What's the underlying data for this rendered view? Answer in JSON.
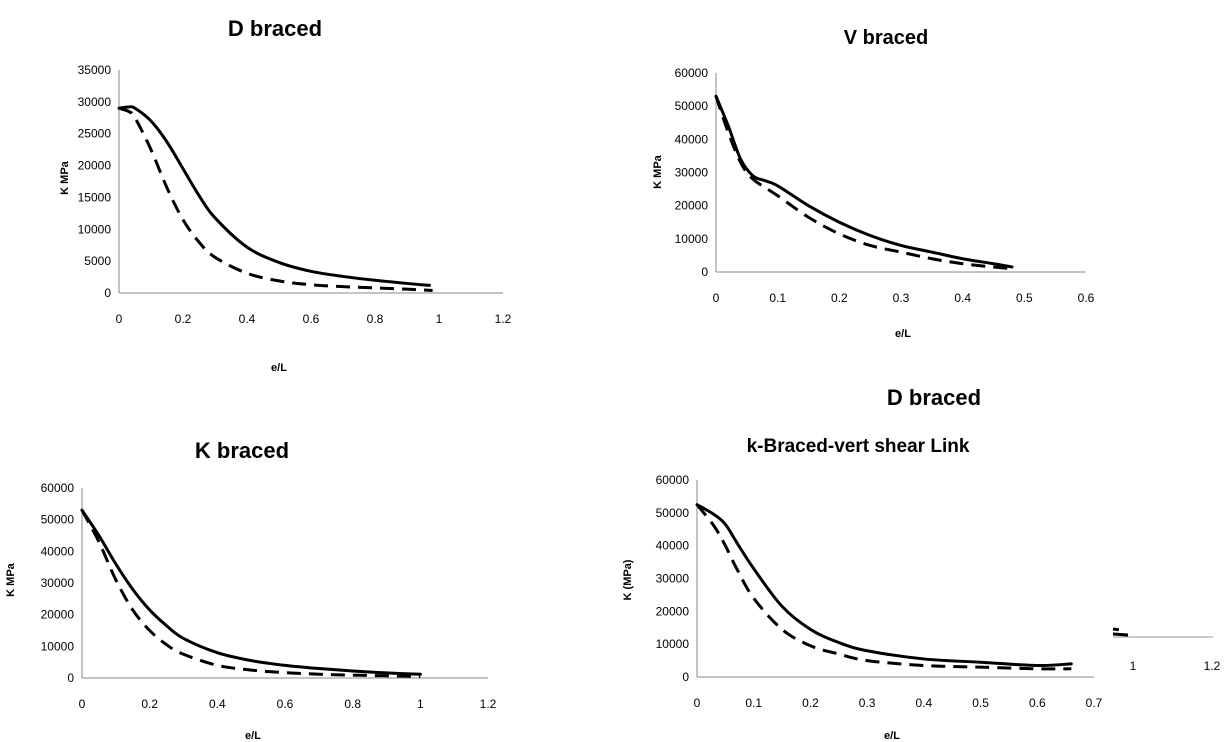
{
  "chart_data": [
    {
      "type": "line",
      "title": "D braced",
      "xlabel": "e/L",
      "ylabel": "K MPa",
      "xlim": [
        0,
        1.2
      ],
      "ylim": [
        0,
        35000
      ],
      "xticks": [
        "0",
        "0.2",
        "0.4",
        "0.6",
        "0.8",
        "1",
        "1.2"
      ],
      "yticks": [
        "0",
        "5000",
        "10000",
        "15000",
        "20000",
        "25000",
        "30000",
        "35000"
      ],
      "grid": false,
      "series": [
        {
          "style": "solid",
          "x": [
            0,
            0.03,
            0.05,
            0.1,
            0.15,
            0.2,
            0.25,
            0.3,
            0.4,
            0.5,
            0.6,
            0.7,
            0.8,
            0.9,
            0.97
          ],
          "y": [
            29000,
            29200,
            29000,
            27000,
            23700,
            19500,
            15300,
            11800,
            7200,
            4800,
            3400,
            2600,
            2000,
            1500,
            1200
          ]
        },
        {
          "style": "dashed",
          "x": [
            0,
            0.03,
            0.05,
            0.1,
            0.15,
            0.2,
            0.25,
            0.3,
            0.4,
            0.5,
            0.6,
            0.7,
            0.8,
            0.9,
            0.98
          ],
          "y": [
            29000,
            28500,
            27500,
            22500,
            16500,
            11500,
            8000,
            5600,
            3100,
            1900,
            1300,
            1000,
            800,
            600,
            400
          ]
        }
      ]
    },
    {
      "type": "line",
      "title": "V braced",
      "xlabel": "e/L",
      "ylabel": "K MPa",
      "xlim": [
        0,
        0.6
      ],
      "ylim": [
        0,
        60000
      ],
      "xticks": [
        "0",
        "0.1",
        "0.2",
        "0.3",
        "0.4",
        "0.5",
        "0.6"
      ],
      "yticks": [
        "0",
        "10000",
        "20000",
        "30000",
        "40000",
        "50000",
        "60000"
      ],
      "grid": false,
      "series": [
        {
          "style": "solid",
          "x": [
            0,
            0.02,
            0.04,
            0.06,
            0.08,
            0.1,
            0.15,
            0.2,
            0.25,
            0.3,
            0.35,
            0.4,
            0.45,
            0.48
          ],
          "y": [
            53000,
            44000,
            34000,
            29000,
            27500,
            26000,
            20000,
            15000,
            11000,
            8000,
            6000,
            4000,
            2500,
            1500
          ]
        },
        {
          "style": "dashed",
          "x": [
            0,
            0.02,
            0.04,
            0.06,
            0.1,
            0.15,
            0.2,
            0.25,
            0.3,
            0.35,
            0.4,
            0.45,
            0.48
          ],
          "y": [
            53000,
            42000,
            33000,
            28000,
            23000,
            16500,
            11500,
            8000,
            6000,
            4000,
            2500,
            1500,
            1000
          ]
        }
      ]
    },
    {
      "type": "line",
      "title": "K braced",
      "xlabel": "e/L",
      "ylabel": "K MPa",
      "xlim": [
        0,
        1.2
      ],
      "ylim": [
        0,
        60000
      ],
      "xticks": [
        "0",
        "0.2",
        "0.4",
        "0.6",
        "0.8",
        "1",
        "1.2"
      ],
      "yticks": [
        "0",
        "10000",
        "20000",
        "30000",
        "40000",
        "50000",
        "60000"
      ],
      "grid": false,
      "series": [
        {
          "style": "solid",
          "x": [
            0,
            0.05,
            0.1,
            0.15,
            0.2,
            0.25,
            0.3,
            0.4,
            0.5,
            0.6,
            0.7,
            0.8,
            0.9,
            1.0
          ],
          "y": [
            53000,
            45000,
            36000,
            28000,
            21500,
            16500,
            12500,
            8000,
            5500,
            4000,
            3000,
            2200,
            1600,
            1200
          ]
        },
        {
          "style": "dashed",
          "x": [
            0,
            0.05,
            0.1,
            0.15,
            0.2,
            0.25,
            0.3,
            0.4,
            0.5,
            0.6,
            0.7,
            0.8,
            0.9,
            1.0
          ],
          "y": [
            53000,
            43000,
            31000,
            21500,
            15000,
            10500,
            7500,
            4000,
            2500,
            1700,
            1200,
            900,
            700,
            500
          ]
        }
      ]
    },
    {
      "type": "line",
      "title": "k-Braced-vert shear Link",
      "heading": "D braced",
      "xlabel": "e/L",
      "ylabel": "K (MPa)",
      "xlim": [
        0,
        0.7
      ],
      "ylim": [
        0,
        60000
      ],
      "xticks": [
        "0",
        "0.1",
        "0.2",
        "0.3",
        "0.4",
        "0.5",
        "0.6",
        "0.7"
      ],
      "yticks": [
        "0",
        "10000",
        "20000",
        "30000",
        "40000",
        "50000",
        "60000"
      ],
      "grid": false,
      "series": [
        {
          "style": "solid",
          "x": [
            0,
            0.03,
            0.05,
            0.07,
            0.1,
            0.15,
            0.2,
            0.25,
            0.3,
            0.4,
            0.5,
            0.6,
            0.66
          ],
          "y": [
            52500,
            49500,
            46500,
            41000,
            33000,
            21500,
            14500,
            10500,
            8000,
            5500,
            4500,
            3500,
            4000
          ]
        },
        {
          "style": "dashed",
          "x": [
            0,
            0.03,
            0.05,
            0.07,
            0.1,
            0.15,
            0.2,
            0.25,
            0.3,
            0.4,
            0.5,
            0.6,
            0.66
          ],
          "y": [
            52500,
            46000,
            40000,
            33000,
            24000,
            14500,
            9500,
            7000,
            5000,
            3500,
            3000,
            2500,
            2500
          ]
        }
      ]
    }
  ],
  "overlap_fragment": {
    "xticks": [
      "1",
      "1.2"
    ]
  }
}
